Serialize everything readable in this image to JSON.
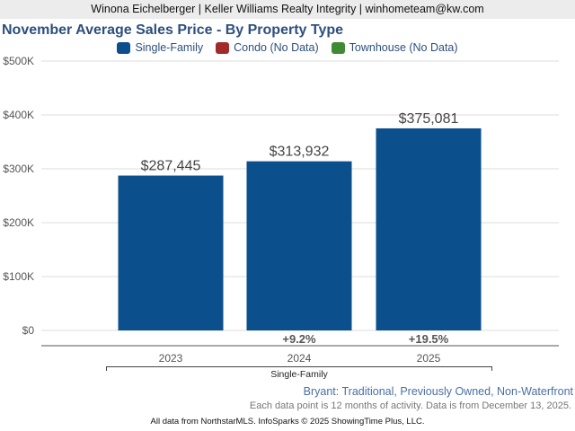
{
  "header": {
    "text": "Winona Eichelberger | Keller Williams Realty Integrity | winhometeam@kw.com"
  },
  "chart_data": {
    "type": "bar",
    "title": "November Average Sales Price - By Property Type",
    "legend": [
      {
        "label": "Single-Family",
        "color": "#0b4f8c"
      },
      {
        "label": "Condo (No Data)",
        "color": "#a32a2a"
      },
      {
        "label": "Townhouse (No Data)",
        "color": "#3f8a35"
      }
    ],
    "legend_position": "top-center",
    "categories": [
      "2023",
      "2024",
      "2025"
    ],
    "group_label": "Single-Family",
    "series": [
      {
        "name": "Single-Family",
        "values": [
          287445,
          313932,
          375081
        ],
        "labels": [
          "$287,445",
          "$313,932",
          "$375,081"
        ],
        "color": "#0b4f8c"
      }
    ],
    "changes": [
      "",
      "+9.2%",
      "+19.5%"
    ],
    "ylim": [
      0,
      500000
    ],
    "yticks": [
      0,
      100000,
      200000,
      300000,
      400000,
      500000
    ],
    "ytick_labels": [
      "$0",
      "$100K",
      "$200K",
      "$300K",
      "$400K",
      "$500K"
    ],
    "grid": true
  },
  "subtitle": "Bryant: Traditional, Previously Owned, Non-Waterfront",
  "note": "Each data point is 12 months of activity. Data is from December 13, 2025.",
  "footer": "All data from NorthstarMLS. InfoSparks © 2025 ShowingTime Plus, LLC."
}
